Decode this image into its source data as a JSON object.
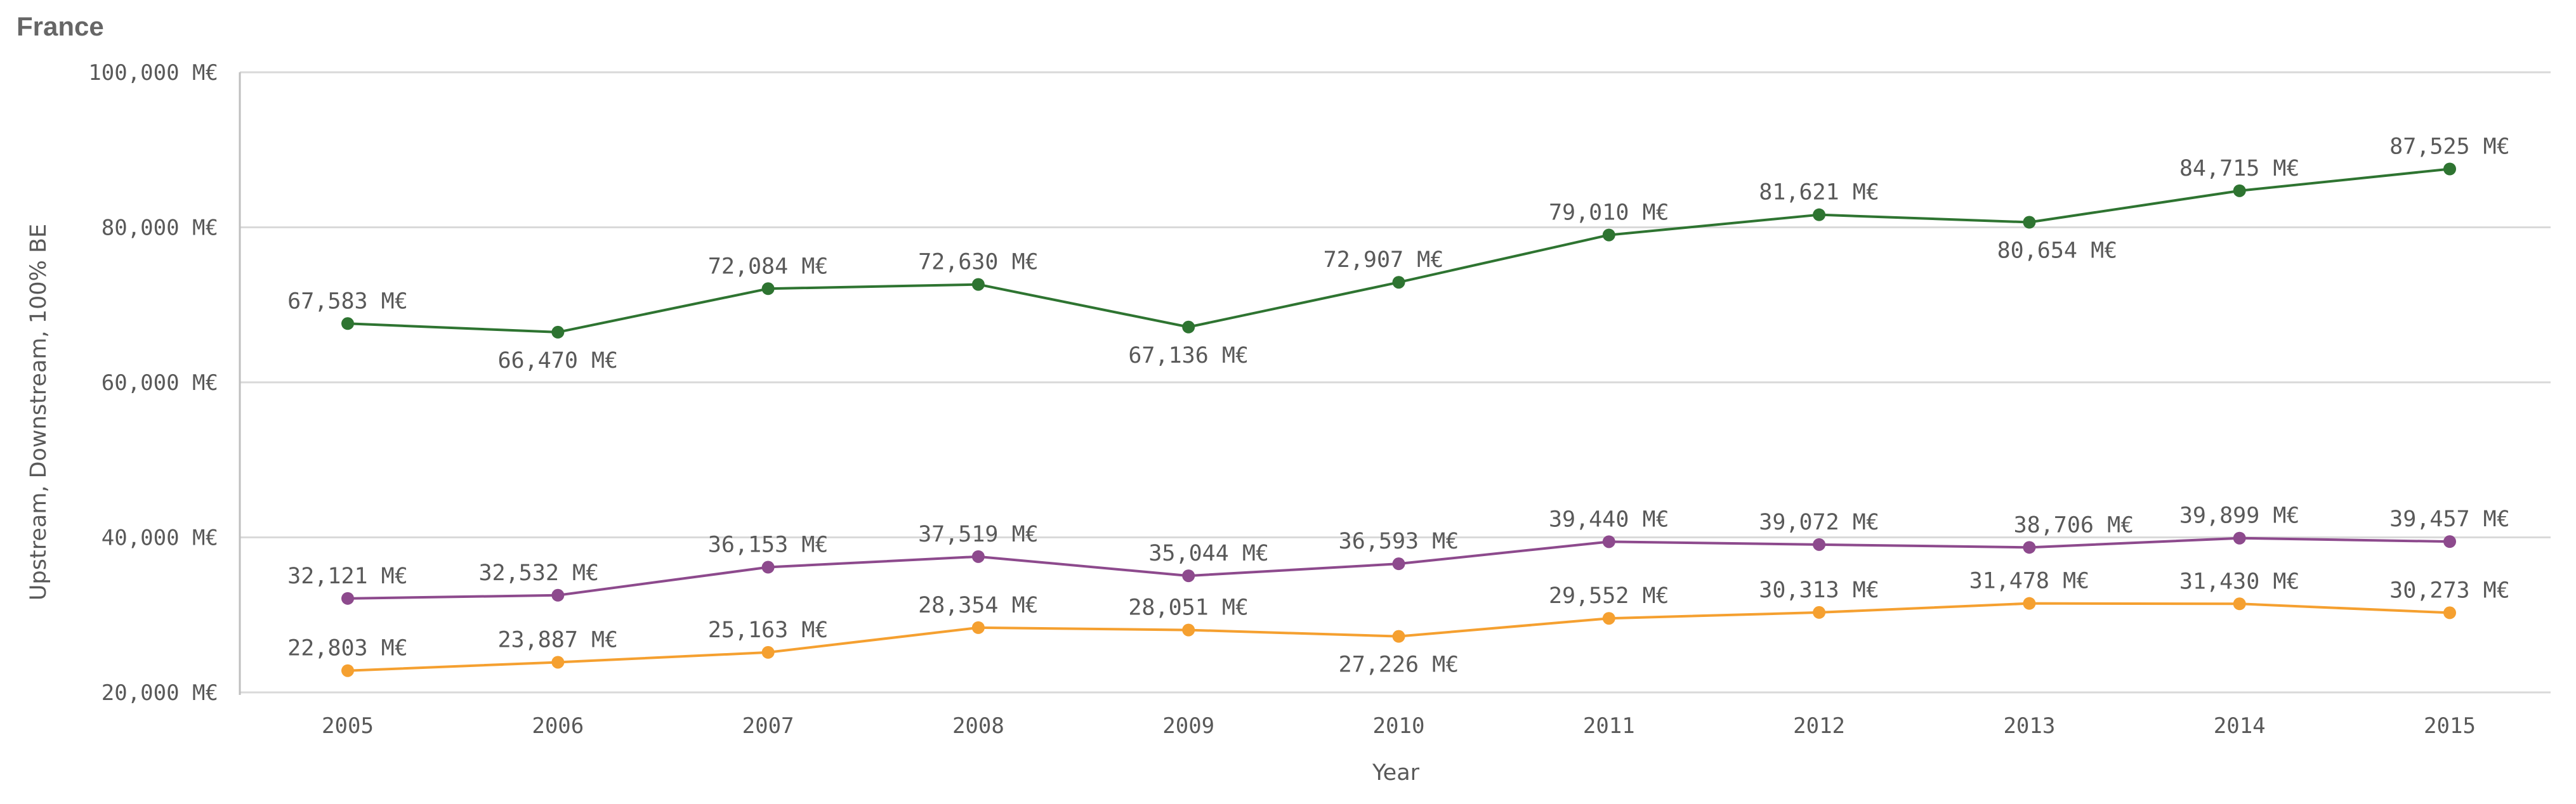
{
  "chart_data": {
    "type": "line",
    "title": "France",
    "xlabel": "Year",
    "ylabel": "Upstream, Downstream, 100% BE",
    "categories": [
      "2005",
      "2006",
      "2007",
      "2008",
      "2009",
      "2010",
      "2011",
      "2012",
      "2013",
      "2014",
      "2015"
    ],
    "ylim": [
      20000,
      100000
    ],
    "yticks": [
      20000,
      40000,
      60000,
      80000,
      100000
    ],
    "ytick_labels": [
      "20,000 M€",
      "40,000 M€",
      "60,000 M€",
      "80,000 M€",
      "100,000 M€"
    ],
    "grid": true,
    "series": [
      {
        "color": "#2e7431",
        "values": [
          67583,
          66470,
          72084,
          72630,
          67136,
          72907,
          79010,
          81621,
          80654,
          84715,
          87525
        ],
        "labels": [
          "67,583 M€",
          "66,470 M€",
          "72,084 M€",
          "72,630 M€",
          "67,136 M€",
          "72,907 M€",
          "79,010 M€",
          "81,621 M€",
          "80,654 M€",
          "84,715 M€",
          "87,525 M€"
        ]
      },
      {
        "color": "#8d4a8d",
        "values": [
          32121,
          32532,
          36153,
          37519,
          35044,
          36593,
          39440,
          39072,
          38706,
          39899,
          39457
        ],
        "labels": [
          "32,121 M€",
          "32,532 M€",
          "36,153 M€",
          "37,519 M€",
          "35,044 M€",
          "36,593 M€",
          "39,440 M€",
          "39,072 M€",
          "38,706 M€",
          "39,899 M€",
          "39,457 M€"
        ]
      },
      {
        "color": "#f5a030",
        "values": [
          22803,
          23887,
          25163,
          28354,
          28051,
          27226,
          29552,
          30313,
          31478,
          31430,
          30273
        ],
        "labels": [
          "22,803 M€",
          "23,887 M€",
          "25,163 M€",
          "28,354 M€",
          "28,051 M€",
          "27,226 M€",
          "29,552 M€",
          "30,313 M€",
          "31,478 M€",
          "31,430 M€",
          "30,273 M€"
        ]
      }
    ]
  }
}
